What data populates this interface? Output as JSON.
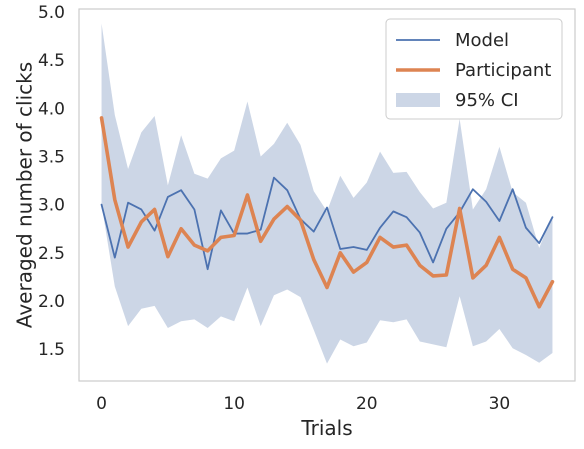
{
  "chart_data": {
    "type": "line",
    "xlabel": "Trials",
    "ylabel": "Averaged number of clicks",
    "xlim": [
      -1.7,
      35.7
    ],
    "ylim": [
      1.17,
      5.03
    ],
    "xticks": [
      0,
      10,
      20,
      30
    ],
    "yticks": [
      1.5,
      2.0,
      2.5,
      3.0,
      3.5,
      4.0,
      4.5,
      5.0
    ],
    "ytick_labels": [
      "1.5",
      "2.0",
      "2.5",
      "3.0",
      "3.5",
      "4.0",
      "4.5",
      "5.0"
    ],
    "grid": false,
    "legend_position": "top-right",
    "x": [
      0,
      1,
      2,
      3,
      4,
      5,
      6,
      7,
      8,
      9,
      10,
      11,
      12,
      13,
      14,
      15,
      16,
      17,
      18,
      19,
      20,
      21,
      22,
      23,
      24,
      25,
      26,
      27,
      28,
      29,
      30,
      31,
      32,
      33,
      34
    ],
    "series": [
      {
        "name": "Model",
        "color": "#4c72b0",
        "values": [
          3.0,
          2.45,
          3.02,
          2.95,
          2.73,
          3.08,
          3.15,
          2.95,
          2.33,
          2.94,
          2.7,
          2.7,
          2.74,
          3.28,
          3.15,
          2.85,
          2.72,
          2.97,
          2.54,
          2.56,
          2.53,
          2.76,
          2.93,
          2.87,
          2.71,
          2.4,
          2.75,
          2.92,
          3.16,
          3.03,
          2.83,
          3.16,
          2.76,
          2.6,
          2.87
        ]
      },
      {
        "name": "Participant",
        "color": "#dd8452",
        "values": [
          3.9,
          3.05,
          2.56,
          2.82,
          2.95,
          2.46,
          2.75,
          2.58,
          2.52,
          2.66,
          2.68,
          3.1,
          2.62,
          2.85,
          2.98,
          2.84,
          2.43,
          2.14,
          2.5,
          2.3,
          2.4,
          2.66,
          2.56,
          2.58,
          2.37,
          2.26,
          2.27,
          2.96,
          2.24,
          2.37,
          2.66,
          2.33,
          2.24,
          1.94,
          2.2
        ]
      }
    ],
    "ci": {
      "name": "95% CI",
      "color": "#ccd6e6",
      "upper": [
        4.88,
        3.93,
        3.37,
        3.75,
        3.92,
        3.2,
        3.72,
        3.32,
        3.27,
        3.48,
        3.56,
        4.07,
        3.5,
        3.63,
        3.85,
        3.62,
        3.14,
        2.93,
        3.3,
        3.07,
        3.23,
        3.55,
        3.33,
        3.34,
        3.13,
        2.96,
        3.02,
        3.89,
        2.95,
        3.16,
        3.6,
        3.13,
        3.02,
        2.55,
        2.89
      ],
      "lower": [
        3.0,
        2.15,
        1.74,
        1.92,
        1.95,
        1.72,
        1.79,
        1.81,
        1.72,
        1.84,
        1.79,
        2.14,
        1.74,
        2.06,
        2.12,
        2.04,
        1.7,
        1.35,
        1.6,
        1.53,
        1.57,
        1.8,
        1.78,
        1.81,
        1.58,
        1.55,
        1.52,
        2.05,
        1.53,
        1.58,
        1.71,
        1.51,
        1.44,
        1.36,
        1.46
      ]
    }
  }
}
